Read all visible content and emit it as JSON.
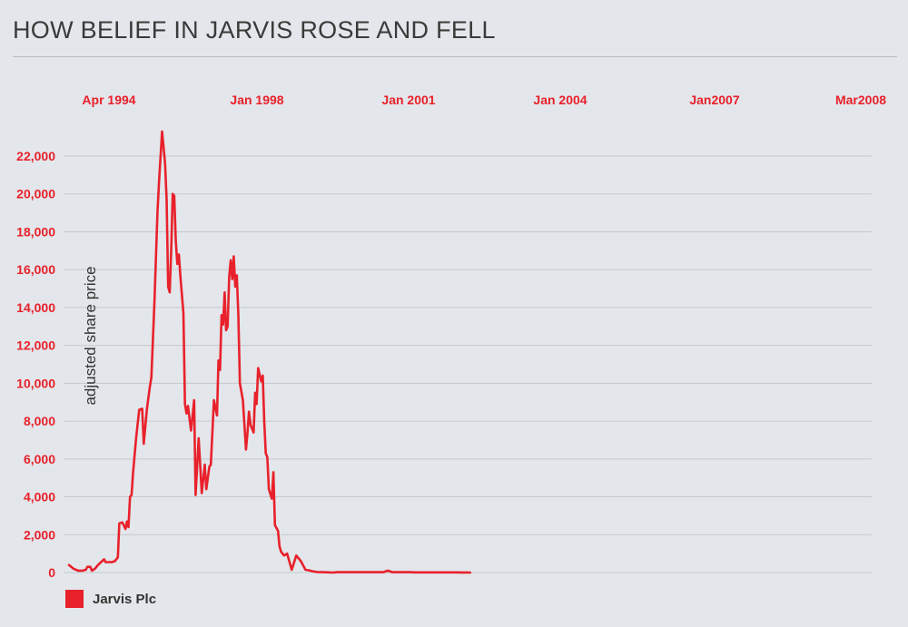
{
  "chart_data": {
    "type": "line",
    "title": "HOW BELIEF IN JARVIS ROSE AND FELL",
    "ylabel": "adjusted share price",
    "xlabel": "",
    "x_tick_labels": [
      "Apr 1994",
      "Jan 1998",
      "Jan 2001",
      "Jan 2004",
      "Jan2007",
      "Mar2008"
    ],
    "y_tick_labels": [
      "0",
      "2,000",
      "4,000",
      "6,000",
      "8,000",
      "10,000",
      "12,000",
      "14,000",
      "16,000",
      "18,000",
      "20,000",
      "22,000"
    ],
    "ylim": [
      0,
      23500
    ],
    "grid": true,
    "legend_position": "bottom-left",
    "colors": {
      "series": "#e8212b",
      "text": "#e8212b",
      "grid": "#c5c9ce"
    },
    "series": [
      {
        "name": "Jarvis Plc",
        "x": [
          "1994-04",
          "1994-07",
          "1994-10",
          "1995-01",
          "1995-03",
          "1995-04",
          "1995-06",
          "1995-07",
          "1995-09",
          "1995-11",
          "1996-01",
          "1996-03",
          "1996-04",
          "1996-06",
          "1996-08",
          "1996-10",
          "1996-12",
          "1997-01",
          "1997-03",
          "1997-05",
          "1997-06",
          "1997-07",
          "1997-08",
          "1997-09",
          "1997-10",
          "1997-12",
          "1998-02",
          "1998-04",
          "1998-05",
          "1998-07",
          "1998-09",
          "1998-10",
          "1998-12",
          "1999-02",
          "1999-03",
          "1999-05",
          "1999-07",
          "1999-08",
          "1999-09",
          "1999-10",
          "1999-11",
          "1999-12",
          "2000-01",
          "2000-02",
          "2000-03",
          "2000-04",
          "2000-05",
          "2000-07",
          "2000-08",
          "2000-09",
          "2000-10",
          "2000-12",
          "2001-02",
          "2001-03",
          "2001-05",
          "2001-07",
          "2001-09",
          "2001-10",
          "2001-12",
          "2002-01",
          "2002-03",
          "2002-05",
          "2002-06",
          "2002-07",
          "2002-08",
          "2002-09",
          "2002-10",
          "2002-11",
          "2002-12",
          "2003-01",
          "2003-02",
          "2003-03",
          "2003-04",
          "2003-05",
          "2003-06",
          "2003-07",
          "2003-08",
          "2003-10",
          "2003-12",
          "2004-01",
          "2004-02",
          "2004-03",
          "2004-05",
          "2004-06",
          "2004-07",
          "2004-08",
          "2004-10",
          "2004-11",
          "2004-12",
          "2005-01",
          "2005-02",
          "2005-03",
          "2005-05",
          "2005-06",
          "2005-07",
          "2005-09",
          "2005-10",
          "2005-11",
          "2006-01",
          "2006-03",
          "2006-06",
          "2006-09",
          "2006-12",
          "2007-03",
          "2007-06",
          "2007-09",
          "2007-11",
          "2008-03",
          "2008-06",
          "2008-09",
          "2008-12",
          "2009-03",
          "2009-06",
          "2009-09",
          "2009-12",
          "2010-03",
          "2010-06",
          "2010-09",
          "2010-12",
          "2011-03",
          "2011-06",
          "2011-09",
          "2011-12",
          "2012-03",
          "2012-06",
          "2012-09",
          "2012-12",
          "2013-03",
          "2013-06",
          "2013-09",
          "2013-12",
          "2014-03",
          "2014-06",
          "2014-09",
          "2014-12",
          "2015-03",
          "2015-06",
          "2015-09",
          "2015-12",
          "2016-03"
        ],
        "values": [
          400,
          200,
          100,
          100,
          150,
          300,
          300,
          100,
          200,
          400,
          550,
          700,
          550,
          550,
          550,
          600,
          800,
          2600,
          2650,
          2300,
          2700,
          2400,
          4000,
          4100,
          5300,
          7100,
          8600,
          8650,
          6800,
          8600,
          9800,
          10300,
          14300,
          19000,
          20600,
          23300,
          21600,
          19700,
          15100,
          14800,
          17100,
          20000,
          19900,
          17500,
          16300,
          16800,
          15700,
          13700,
          8900,
          8400,
          8800,
          7500,
          9100,
          4100,
          7100,
          4200,
          5700,
          4400,
          5600,
          5700,
          9100,
          8300,
          11200,
          10700,
          13600,
          13100,
          14800,
          12800,
          13000,
          15600,
          16500,
          15500,
          16700,
          15100,
          15700,
          13600,
          10000,
          9100,
          6500,
          7400,
          8500,
          7800,
          7400,
          9500,
          8900,
          10800,
          10100,
          10400,
          8000,
          6300,
          6100,
          4400,
          3900,
          5300,
          2500,
          2200,
          1400,
          1100,
          900,
          1000,
          150,
          900,
          600,
          150,
          100,
          50,
          30,
          20,
          10,
          0,
          20,
          20,
          20,
          20,
          20,
          20,
          20,
          20,
          20,
          20,
          20,
          100,
          20,
          20,
          20,
          20,
          20,
          10,
          10,
          10,
          10,
          10,
          10,
          10,
          10,
          10,
          10,
          5,
          5,
          0
        ]
      }
    ]
  },
  "legend": {
    "items": [
      {
        "label": "Jarvis Plc",
        "color": "#e8212b"
      }
    ]
  }
}
